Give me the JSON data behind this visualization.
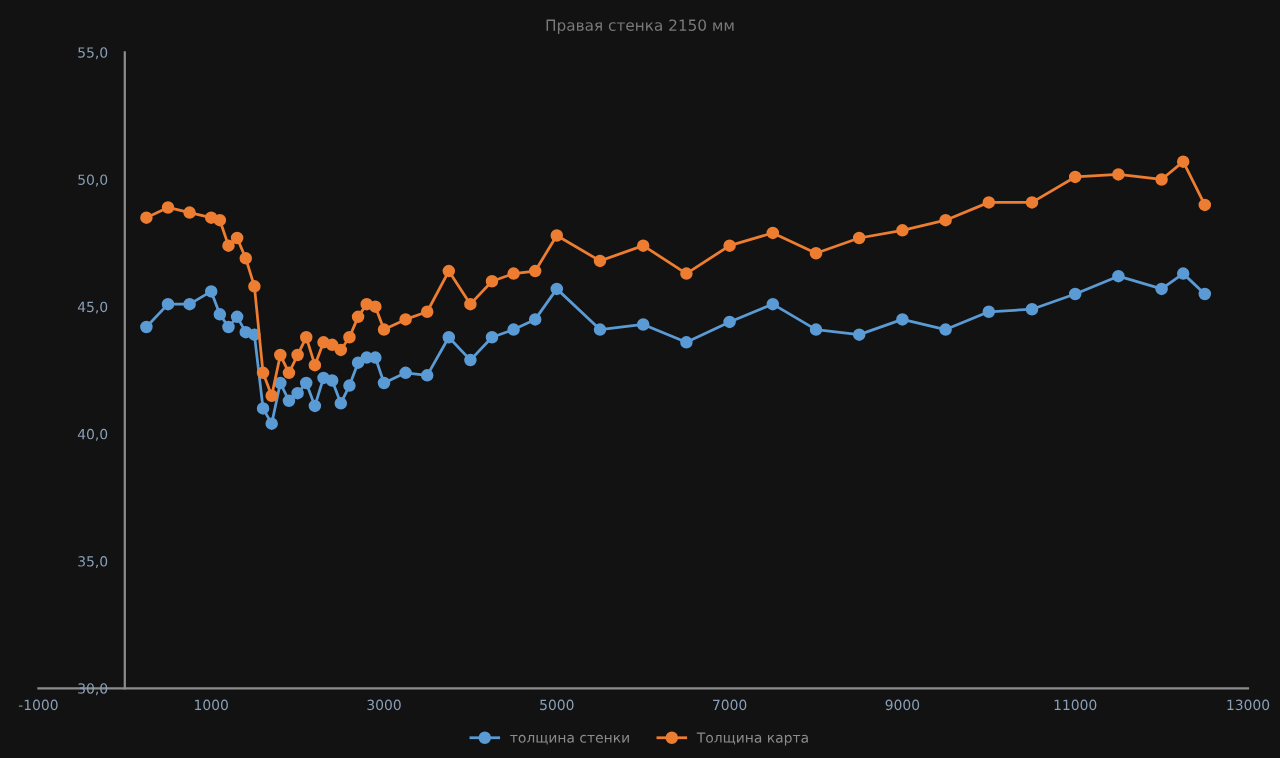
{
  "chart_data": {
    "type": "line",
    "title": "Правая стенка 2150 мм",
    "x": [
      250,
      500,
      750,
      1000,
      1100,
      1200,
      1300,
      1400,
      1500,
      1600,
      1700,
      1800,
      1900,
      2000,
      2100,
      2200,
      2300,
      2400,
      2500,
      2600,
      2700,
      2800,
      2900,
      3000,
      3250,
      3500,
      3750,
      4000,
      4250,
      4500,
      4750,
      5000,
      5500,
      6000,
      6500,
      7000,
      7500,
      8000,
      8500,
      9000,
      9500,
      10000,
      10500,
      11000,
      11500,
      12000,
      12250,
      12500
    ],
    "series": [
      {
        "name": "толщина стенки",
        "color": "#5b9bd5",
        "values": [
          44.2,
          45.1,
          45.1,
          45.6,
          44.7,
          44.2,
          44.6,
          44.0,
          43.9,
          41.0,
          40.4,
          42.0,
          41.3,
          41.6,
          42.0,
          41.1,
          42.2,
          42.1,
          41.2,
          41.9,
          42.8,
          43.0,
          43.0,
          42.0,
          42.4,
          42.3,
          43.8,
          42.9,
          43.8,
          44.1,
          44.5,
          45.7,
          44.1,
          44.3,
          43.6,
          44.4,
          45.1,
          44.1,
          43.9,
          44.5,
          44.1,
          44.8,
          44.9,
          45.5,
          46.2,
          45.7,
          46.3,
          45.5
        ]
      },
      {
        "name": "Толщина карта",
        "color": "#ed7d31",
        "values": [
          48.5,
          48.9,
          48.7,
          48.5,
          48.4,
          47.4,
          47.7,
          46.9,
          45.8,
          42.4,
          41.5,
          43.1,
          42.4,
          43.1,
          43.8,
          42.7,
          43.6,
          43.5,
          43.3,
          43.8,
          44.6,
          45.1,
          45.0,
          44.1,
          44.5,
          44.8,
          46.4,
          45.1,
          46.0,
          46.3,
          46.4,
          47.8,
          46.8,
          47.4,
          46.3,
          47.4,
          47.9,
          47.1,
          47.7,
          48.0,
          48.4,
          49.1,
          49.1,
          50.1,
          50.2,
          50.0,
          50.7,
          49.0
        ]
      }
    ],
    "xlim": [
      -1000,
      13000
    ],
    "xticks": [
      -1000,
      1000,
      3000,
      5000,
      7000,
      9000,
      11000,
      13000
    ],
    "ylim": [
      30,
      55
    ],
    "yticks": [
      {
        "value": 30,
        "label": "30,0"
      },
      {
        "value": 35,
        "label": "35,0"
      },
      {
        "value": 40,
        "label": "40,0"
      },
      {
        "value": 45,
        "label": "45,0"
      },
      {
        "value": 50,
        "label": "50,0"
      },
      {
        "value": 55,
        "label": "55,0"
      }
    ],
    "grid": false,
    "legend": "bottom",
    "marker": "circle",
    "line_style": "solid"
  }
}
